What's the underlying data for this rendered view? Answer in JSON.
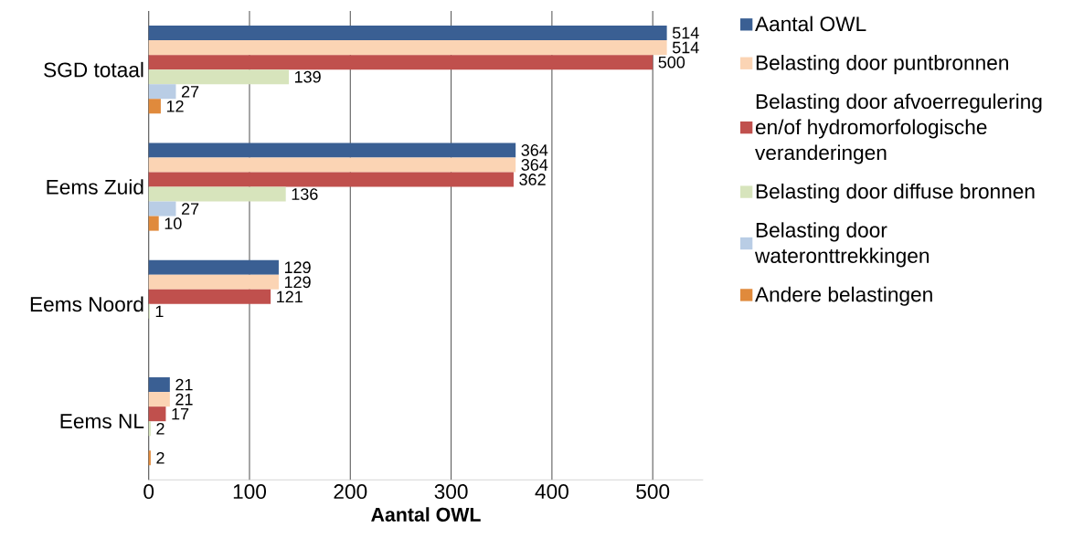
{
  "chart_data": {
    "type": "bar",
    "orientation": "horizontal",
    "xlabel": "Aantal OWL",
    "categories": [
      "SGD totaal",
      "Eems Zuid",
      "Eems Noord",
      "Eems NL"
    ],
    "series": [
      {
        "name": "Aantal OWL",
        "color": "#3a5f93",
        "values": [
          514,
          364,
          129,
          21
        ]
      },
      {
        "name": "Belasting door puntbronnen",
        "color": "#fbd4b4",
        "values": [
          514,
          364,
          129,
          21
        ]
      },
      {
        "name": "Belasting door afvoerregulering en/of hydromorfologische veranderingen",
        "color": "#c0504d",
        "values": [
          500,
          362,
          121,
          17
        ]
      },
      {
        "name": "Belasting door diffuse bronnen",
        "color": "#d7e4bc",
        "values": [
          139,
          136,
          1,
          2
        ]
      },
      {
        "name": "Belasting door wateronttrekkingen",
        "color": "#b9cde5",
        "values": [
          27,
          27,
          null,
          null
        ]
      },
      {
        "name": "Andere belastingen",
        "color": "#e08a3c",
        "values": [
          12,
          10,
          null,
          2
        ]
      }
    ],
    "xlim": [
      0,
      550
    ],
    "xticks": [
      0,
      100,
      200,
      300,
      400,
      500
    ],
    "grid": "x",
    "legend": "right",
    "data_labels": true
  }
}
